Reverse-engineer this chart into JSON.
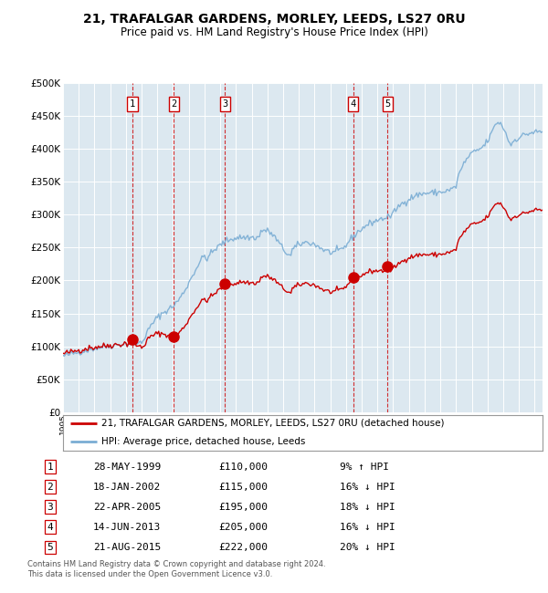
{
  "title": "21, TRAFALGAR GARDENS, MORLEY, LEEDS, LS27 0RU",
  "subtitle": "Price paid vs. HM Land Registry's House Price Index (HPI)",
  "title_fontsize": 10,
  "subtitle_fontsize": 8.5,
  "bg_color": "#dce8f0",
  "grid_color": "#ffffff",
  "ylim": [
    0,
    500000
  ],
  "yticks": [
    0,
    50000,
    100000,
    150000,
    200000,
    250000,
    300000,
    350000,
    400000,
    450000,
    500000
  ],
  "sale_dates_num": [
    1999.41,
    2002.05,
    2005.31,
    2013.45,
    2015.64
  ],
  "sale_prices": [
    110000,
    115000,
    195000,
    205000,
    222000
  ],
  "sale_labels": [
    "1",
    "2",
    "3",
    "4",
    "5"
  ],
  "sale_color": "#cc0000",
  "hpi_color": "#7aadd4",
  "legend_label_property": "21, TRAFALGAR GARDENS, MORLEY, LEEDS, LS27 0RU (detached house)",
  "legend_label_hpi": "HPI: Average price, detached house, Leeds",
  "table_rows": [
    [
      "1",
      "28-MAY-1999",
      "£110,000",
      "9% ↑ HPI"
    ],
    [
      "2",
      "18-JAN-2002",
      "£115,000",
      "16% ↓ HPI"
    ],
    [
      "3",
      "22-APR-2005",
      "£195,000",
      "18% ↓ HPI"
    ],
    [
      "4",
      "14-JUN-2013",
      "£205,000",
      "16% ↓ HPI"
    ],
    [
      "5",
      "21-AUG-2015",
      "£222,000",
      "20% ↓ HPI"
    ]
  ],
  "footer": "Contains HM Land Registry data © Crown copyright and database right 2024.\nThis data is licensed under the Open Government Licence v3.0.",
  "xmin": 1995.0,
  "xmax": 2025.5
}
